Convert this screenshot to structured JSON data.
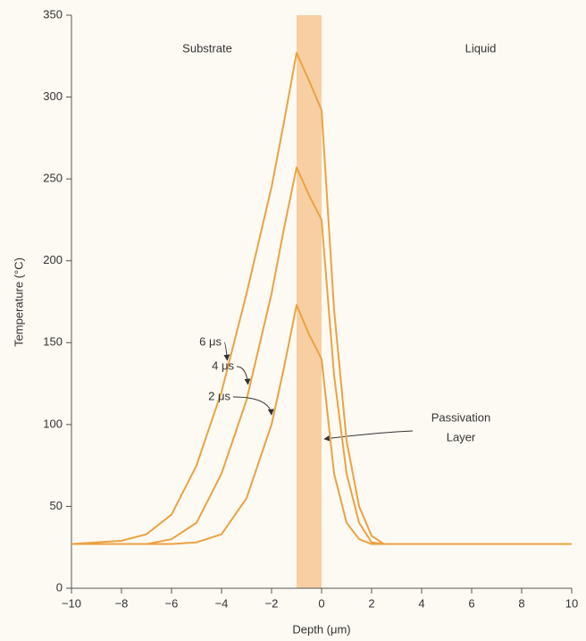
{
  "chart_data": {
    "type": "line",
    "x": [
      -10,
      -8,
      -7,
      -6,
      -5,
      -4,
      -3,
      -2,
      -1.5,
      -1,
      -0.5,
      0,
      0.5,
      1,
      1.5,
      2,
      2.5,
      3,
      10
    ],
    "series": [
      {
        "name": "6 μs",
        "color": "#eba243",
        "values": [
          27,
          29,
          33,
          45,
          75,
          120,
          180,
          245,
          285,
          327,
          310,
          292,
          170,
          90,
          50,
          32,
          27,
          27,
          27
        ]
      },
      {
        "name": "4 μs",
        "color": "#eba243",
        "values": [
          27,
          27,
          27,
          30,
          40,
          70,
          115,
          180,
          220,
          257,
          240,
          225,
          130,
          70,
          40,
          28,
          27,
          27,
          27
        ]
      },
      {
        "name": "2 μs",
        "color": "#eba243",
        "values": [
          27,
          27,
          27,
          27,
          28,
          33,
          55,
          100,
          135,
          173,
          155,
          140,
          70,
          40,
          30,
          27,
          27,
          27,
          27
        ]
      }
    ],
    "band": [
      -1,
      0
    ],
    "band_color": "#f7cfa3",
    "xlabel": "Depth (μm)",
    "ylabel": "Temperature (°C)",
    "annotations": [
      "Substrate",
      "Liquid",
      "Passivation",
      "Layer"
    ],
    "xlim": [
      -10,
      10
    ],
    "xticks": [
      {
        "value": -10,
        "label": "−10"
      },
      {
        "value": -8,
        "label": "−8"
      },
      {
        "value": -6,
        "label": "−6"
      },
      {
        "value": -4,
        "label": "−4"
      },
      {
        "value": -2,
        "label": "−2"
      },
      0,
      2,
      4,
      6,
      8,
      10
    ],
    "ylim": [
      0,
      350
    ],
    "yticks": [
      0,
      50,
      100,
      150,
      200,
      250,
      300,
      350
    ]
  }
}
